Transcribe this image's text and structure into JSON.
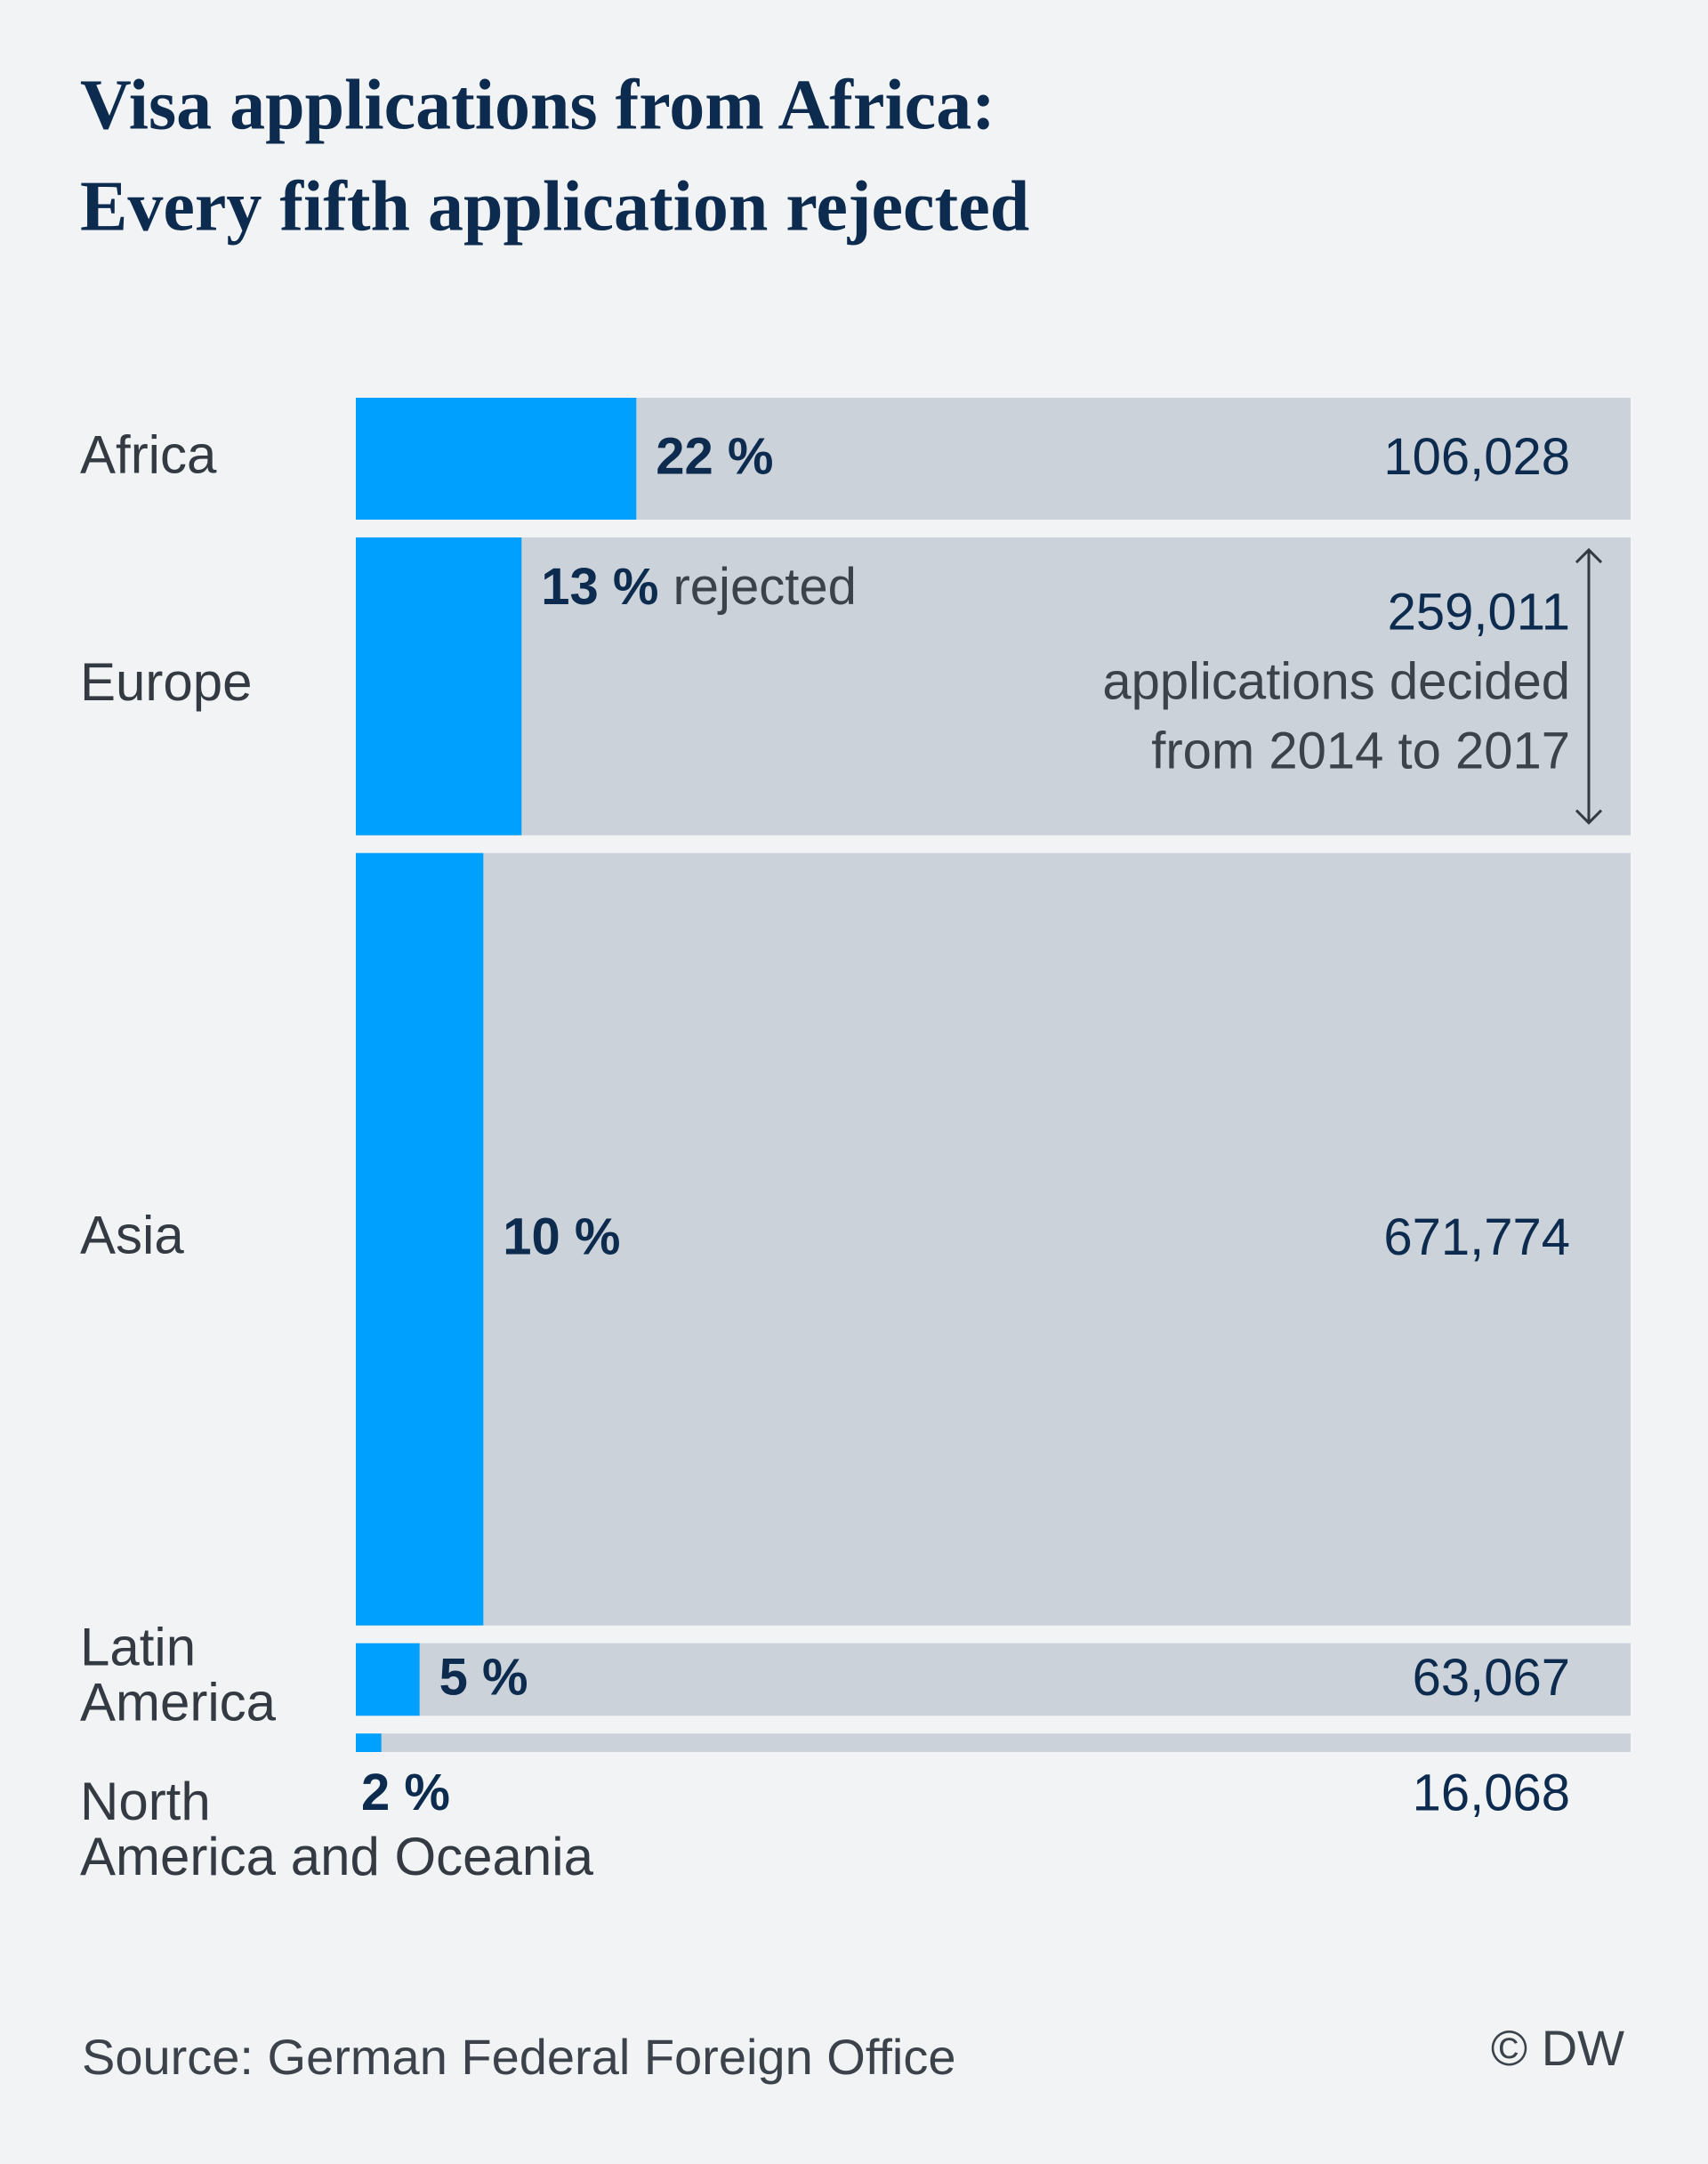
{
  "chart_data": {
    "type": "bar",
    "title": "Visa applications from Africa:",
    "subtitle": "Every fifth application rejected",
    "categories": [
      "Africa",
      "Europe",
      "Asia",
      "Latin America",
      "North America and Oceania"
    ],
    "values": [
      22,
      13,
      10,
      5,
      2
    ],
    "value_labels": [
      "22 %",
      "13 %",
      "10 %",
      "5 %",
      "2 %"
    ],
    "totals": [
      106028,
      259011,
      671774,
      63067,
      16068
    ],
    "total_labels": [
      "106,028",
      "259,011",
      "671,774",
      "63,067",
      "16,068"
    ],
    "xlim": [
      0,
      100
    ],
    "color": "#00a0ff",
    "background_color": "#cbd2d9",
    "annotation": {
      "index": 1,
      "value_suffix": "rejected",
      "total_lines": [
        "applications decided",
        "from 2014 to 2017"
      ]
    },
    "source": "Source: German Federal Foreign Office",
    "credit": "© DW"
  }
}
